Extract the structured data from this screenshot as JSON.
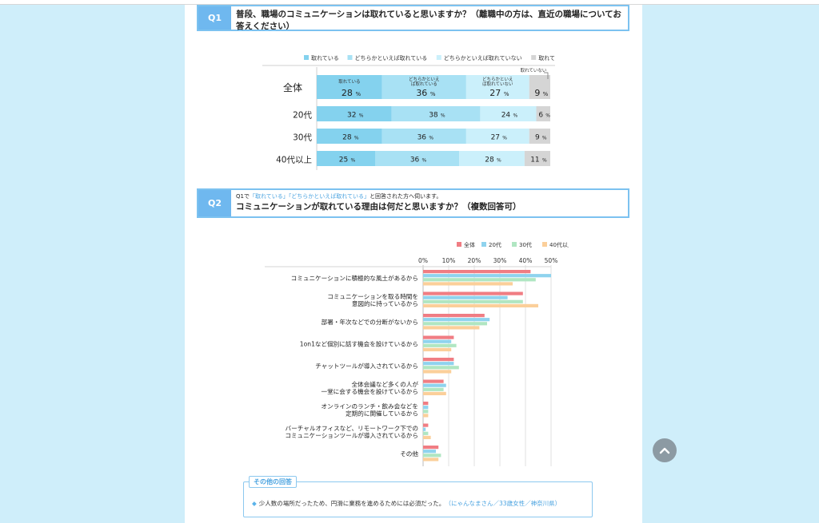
{
  "q1": {
    "label": "Q1",
    "line1": "普段、職場のコミュニケーションは取れていると思いますか？（離職中の方は、直近の職場についてお",
    "line2": "答えください）"
  },
  "q2": {
    "label": "Q2",
    "sub_pre": "Q1で",
    "sub_hl": "「取れている」「どちらかといえば取れている」",
    "sub_post": "と回答された方へ伺います。",
    "title": "コミュニケーションが取れている理由は何だと思いますか？（複数回答可）"
  },
  "other_answers": {
    "title": "その他の回答",
    "items": [
      {
        "text": "少人数の場所だったため、円滑に業務を進めるためには必須だった。",
        "who": "（にゃんなまさん／33歳女性／神奈川県）"
      }
    ]
  },
  "chart_data": [
    {
      "type": "bar",
      "stacked": true,
      "orientation": "horizontal",
      "legend_position": "top-right",
      "percent_unit": "%",
      "categories": [
        "全体",
        "20代",
        "30代",
        "40代以上"
      ],
      "series": [
        {
          "name": "取れている",
          "values": [
            28,
            32,
            28,
            25
          ],
          "color": "#84d2ee",
          "inbar_label": "取れている"
        },
        {
          "name": "どちらかといえば取れている",
          "values": [
            36,
            38,
            36,
            36
          ],
          "color": "#a8e1f4",
          "inbar_label": "どちらかといえば取れている"
        },
        {
          "name": "どちらかといえば取れていない",
          "values": [
            27,
            24,
            27,
            28
          ],
          "color": "#cbf0fb",
          "inbar_label": "どちらかといえば取れていない"
        },
        {
          "name": "取れていない",
          "values": [
            9,
            6,
            9,
            11
          ],
          "color": "#d5d5d5",
          "inbar_label": "取れていない"
        }
      ]
    },
    {
      "type": "bar",
      "orientation": "horizontal",
      "legend_position": "top-right",
      "x_ticks": [
        "0%",
        "10%",
        "20%",
        "30%",
        "40%",
        "50%"
      ],
      "xlim": [
        0,
        50
      ],
      "categories": [
        "コミュニケーションに積極的な風土があるから",
        "コミュニケーションを取る時間を\n意図的に持っているから",
        "部署・年次などでの分断がないから",
        "1on1など個別に話す機会を設けているから",
        "チャットツールが導入されているから",
        "全体会議など多くの人が\n一堂に会する機会を設けているから",
        "オンラインのランチ・飲み会などを\n定期的に開催しているから",
        "バーチャルオフィスなど、リモートワーク下での\nコミュニケーションツールが導入されているから",
        "その他"
      ],
      "series": [
        {
          "name": "全体",
          "color": "#f07d83",
          "values": [
            42,
            39,
            24,
            12,
            12,
            8,
            2,
            2,
            6
          ]
        },
        {
          "name": "20代",
          "color": "#8fd3ee",
          "values": [
            50,
            33,
            26,
            11,
            12,
            9,
            2,
            1,
            5
          ]
        },
        {
          "name": "30代",
          "color": "#b0e6c2",
          "values": [
            44,
            39,
            25,
            13,
            14,
            8,
            2,
            2,
            7
          ]
        },
        {
          "name": "40代以上",
          "color": "#fbcf9a",
          "values": [
            35,
            45,
            22,
            11,
            11,
            9,
            2,
            3,
            6
          ]
        }
      ]
    }
  ]
}
